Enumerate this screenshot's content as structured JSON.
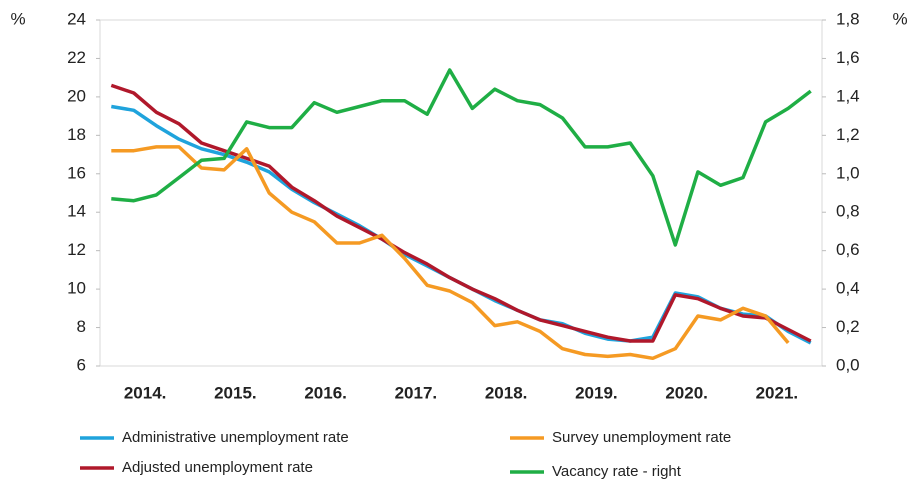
{
  "chart_data": {
    "type": "line",
    "y_label": "%",
    "y2_label": "%",
    "categories": [
      null,
      "2014.",
      null,
      null,
      null,
      "2015.",
      null,
      null,
      null,
      "2016.",
      null,
      null,
      null,
      "2017.",
      null,
      null,
      null,
      "2018.",
      null,
      null,
      null,
      "2019.",
      null,
      null,
      null,
      "2020.",
      null,
      null,
      null,
      "2021.",
      null,
      null
    ],
    "ylim": [
      6,
      24
    ],
    "yticks": [
      6,
      8,
      10,
      12,
      14,
      16,
      18,
      20,
      22,
      24
    ],
    "y2lim": [
      0,
      1.8
    ],
    "y2ticks": [
      {
        "value": 0,
        "label": "0,0"
      },
      {
        "value": 0.2,
        "label": "0,2"
      },
      {
        "value": 0.4,
        "label": "0,4"
      },
      {
        "value": 0.6,
        "label": "0,6"
      },
      {
        "value": 0.8,
        "label": "0,8"
      },
      {
        "value": 1.0,
        "label": "1,0"
      },
      {
        "value": 1.2,
        "label": "1,2"
      },
      {
        "value": 1.4,
        "label": "1,4"
      },
      {
        "value": 1.6,
        "label": "1,6"
      },
      {
        "value": 1.8,
        "label": "1,8"
      }
    ],
    "grid": false,
    "series": [
      {
        "name": "Administrative unemployment rate",
        "color": "#1fa3dc",
        "values": [
          19.5,
          19.3,
          18.5,
          17.8,
          17.3,
          17.0,
          16.6,
          16.1,
          15.2,
          14.5,
          13.9,
          13.3,
          12.6,
          11.8,
          11.2,
          10.6,
          10.0,
          9.4,
          8.9,
          8.4,
          8.2,
          7.7,
          7.4,
          7.3,
          7.5,
          9.8,
          9.6,
          9.0,
          8.7,
          8.6,
          7.8,
          7.2
        ]
      },
      {
        "name": "Adjusted unemployment rate",
        "color": "#b0182b",
        "values": [
          20.6,
          20.2,
          19.2,
          18.6,
          17.6,
          17.2,
          16.8,
          16.4,
          15.3,
          14.6,
          13.8,
          13.2,
          12.6,
          11.9,
          11.3,
          10.6,
          10.0,
          9.5,
          8.9,
          8.4,
          8.1,
          7.8,
          7.5,
          7.3,
          7.3,
          9.7,
          9.5,
          9.0,
          8.6,
          8.5,
          7.9,
          7.3
        ]
      },
      {
        "name": "Survey unemployment rate",
        "color": "#f59a23",
        "values": [
          17.2,
          17.2,
          17.4,
          17.4,
          16.3,
          16.2,
          17.3,
          15.0,
          14.0,
          13.5,
          12.4,
          12.4,
          12.8,
          11.6,
          10.2,
          9.9,
          9.3,
          8.1,
          8.3,
          7.8,
          6.9,
          6.6,
          6.5,
          6.6,
          6.4,
          6.9,
          8.6,
          8.4,
          9.0,
          8.6,
          7.2,
          null
        ]
      },
      {
        "name": "Vacancy rate - right",
        "color": "#1fae45",
        "axis": "y2",
        "values": [
          0.87,
          0.86,
          0.89,
          0.98,
          1.07,
          1.08,
          1.27,
          1.24,
          1.24,
          1.37,
          1.32,
          1.35,
          1.38,
          1.38,
          1.31,
          1.54,
          1.34,
          1.44,
          1.38,
          1.36,
          1.29,
          1.14,
          1.14,
          1.16,
          0.99,
          0.63,
          1.01,
          0.94,
          0.98,
          1.27,
          1.34,
          1.43
        ]
      }
    ]
  }
}
